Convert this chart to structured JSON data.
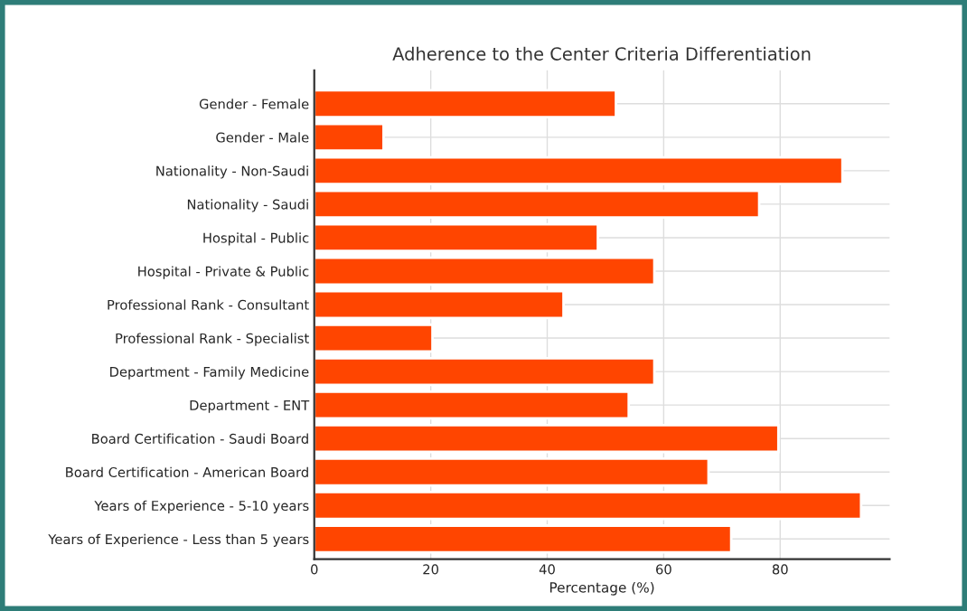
{
  "chart_data": {
    "type": "bar",
    "orientation": "horizontal",
    "title": "Adherence to the Center Criteria Differentiation",
    "xlabel": "Percentage (%)",
    "categories": [
      "Gender - Female",
      "Gender - Male",
      "Nationality - Non-Saudi",
      "Nationality - Saudi",
      "Hospital - Public",
      "Hospital - Private & Public",
      "Professional Rank - Consultant",
      "Professional Rank - Specialist",
      "Department - Family Medicine",
      "Department - ENT",
      "Board Certification - Saudi Board",
      "Board Certification - American Board",
      "Years of Experience - 5-10 years",
      "Years of Experience - Less than 5 years"
    ],
    "values": [
      51.8,
      11.9,
      90.7,
      76.4,
      48.7,
      58.4,
      42.8,
      20.3,
      58.4,
      54.0,
      79.7,
      67.7,
      93.9,
      71.6
    ],
    "color": "#ff4500",
    "xlim": [
      0,
      98.8
    ],
    "xticks": [
      0,
      20,
      40,
      60,
      80
    ],
    "grid": true
  }
}
